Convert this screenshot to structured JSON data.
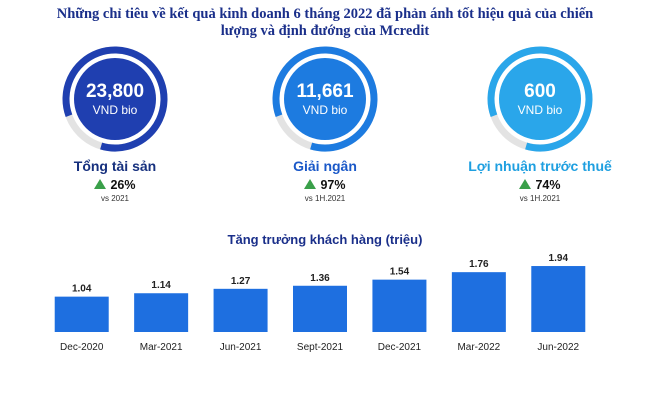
{
  "headline": {
    "line1": "Những chỉ tiêu về kết quả kinh doanh 6 tháng 2022 đã phản ánh tốt hiệu quả của chiến",
    "line2": "lượng và định đướng của Mcredit"
  },
  "kpis": [
    {
      "value": "23,800",
      "unit": "VND bio",
      "label": "Tổng tài sản",
      "growth": "26%",
      "vs": "vs 2021",
      "color": "#1f3fb0",
      "label_color": "#16307e",
      "ring_fill": 0.85
    },
    {
      "value": "11,661",
      "unit": "VND bio",
      "label": "Giải ngân",
      "growth": "97%",
      "vs": "vs 1H.2021",
      "color": "#1d7be0",
      "label_color": "#1a58c8",
      "ring_fill": 0.85
    },
    {
      "value": "600",
      "unit": "VND bio",
      "label": "Lợi nhuận trước thuế",
      "growth": "74%",
      "vs": "vs 1H.2021",
      "color": "#2aa6ea",
      "label_color": "#1e9fe0",
      "ring_fill": 0.85
    }
  ],
  "colors": {
    "bar": "#1e6fe0",
    "ring_track": "#e3e3e3",
    "up_arrow": "#3aa04a"
  },
  "chart_data": {
    "type": "bar",
    "title": "Tăng trưởng khách hàng (triệu)",
    "categories": [
      "Dec-2020",
      "Mar-2021",
      "Jun-2021",
      "Sept-2021",
      "Dec-2021",
      "Mar-2022",
      "Jun-2022"
    ],
    "values": [
      1.04,
      1.14,
      1.27,
      1.36,
      1.54,
      1.76,
      1.94
    ],
    "data_labels": [
      "1.04",
      "1.14",
      "1.27",
      "1.36",
      "1.54",
      "1.76",
      "1.94"
    ],
    "xlabel": "",
    "ylabel": "",
    "ylim": [
      0,
      2.0
    ],
    "grid": false,
    "legend": "none"
  }
}
